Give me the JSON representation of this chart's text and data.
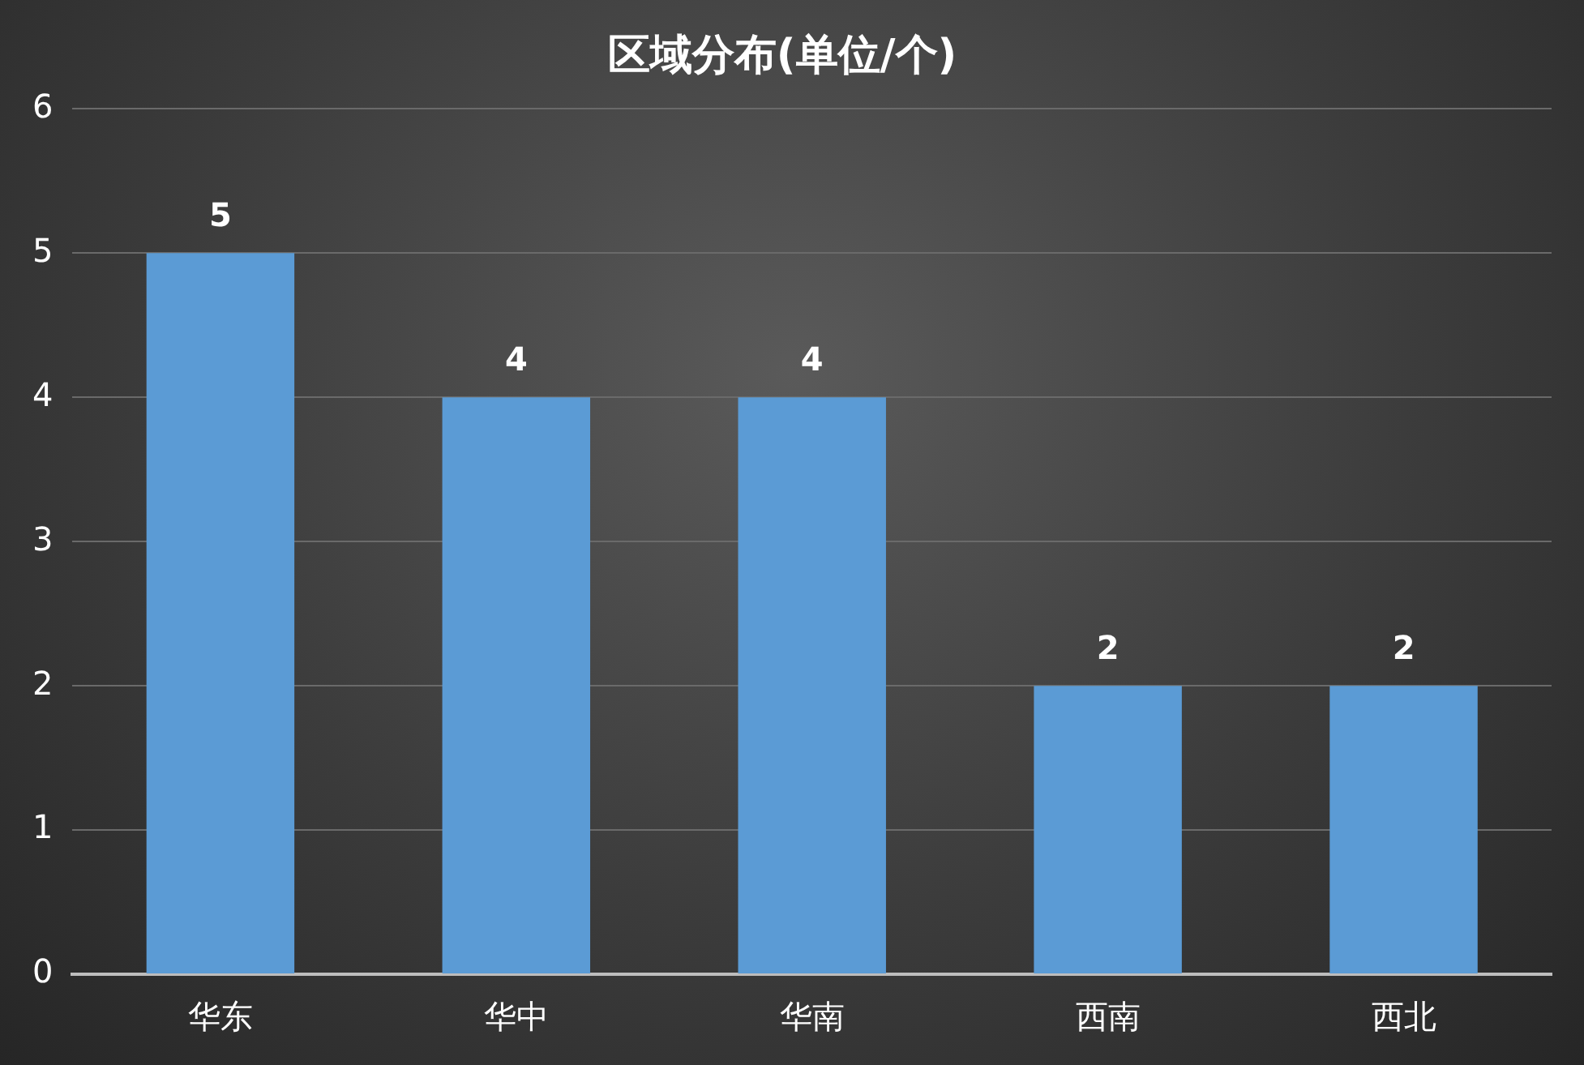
{
  "chart_data": {
    "type": "bar",
    "title": "区域分布(单位/个)",
    "categories": [
      "华东",
      "华中",
      "华南",
      "西南",
      "西北"
    ],
    "values": [
      5,
      4,
      4,
      2,
      2
    ],
    "color": "#5b9bd5",
    "ylim": [
      0,
      6
    ],
    "yticks": [
      0,
      1,
      2,
      3,
      4,
      5,
      6
    ],
    "grid": "y",
    "data_labels": true
  }
}
